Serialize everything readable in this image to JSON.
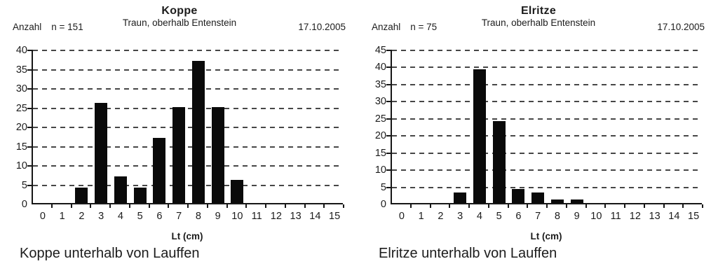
{
  "colors": {
    "bar": "#0a0a0a",
    "grid": "#474747",
    "axis": "#161616",
    "text": "#1c1c1c"
  },
  "chart_data": [
    {
      "type": "bar",
      "title": "Koppe",
      "subtitle": "Traun, oberhalb Entenstein",
      "date": "17.10.2005",
      "corner_label": "Anzahl",
      "n_label": "n = 151",
      "xlabel": "Lt (cm)",
      "caption": "Koppe unterhalb von Lauffen",
      "categories": [
        "0",
        "1",
        "2",
        "3",
        "4",
        "5",
        "6",
        "7",
        "8",
        "9",
        "10",
        "11",
        "12",
        "13",
        "14",
        "15"
      ],
      "values": [
        0,
        0,
        4,
        26,
        7,
        4,
        17,
        25,
        37,
        25,
        6,
        0,
        0,
        0,
        0,
        0
      ],
      "ylim": [
        0,
        40
      ],
      "ytick_step": 5,
      "grid": "dashed-horizontal",
      "legend": "none"
    },
    {
      "type": "bar",
      "title": "Elritze",
      "subtitle": "Traun, oberhalb Entenstein",
      "date": "17.10.2005",
      "corner_label": "Anzahl",
      "n_label": "n = 75",
      "xlabel": "Lt (cm)",
      "caption": "Elritze unterhalb von Lauffen",
      "categories": [
        "0",
        "1",
        "2",
        "3",
        "4",
        "5",
        "6",
        "7",
        "8",
        "9",
        "10",
        "11",
        "12",
        "13",
        "14",
        "15"
      ],
      "values": [
        0,
        0,
        0,
        3,
        39,
        24,
        4,
        3,
        1,
        1,
        0,
        0,
        0,
        0,
        0,
        0
      ],
      "ylim": [
        0,
        45
      ],
      "ytick_step": 5,
      "grid": "dashed-horizontal",
      "legend": "none"
    }
  ]
}
